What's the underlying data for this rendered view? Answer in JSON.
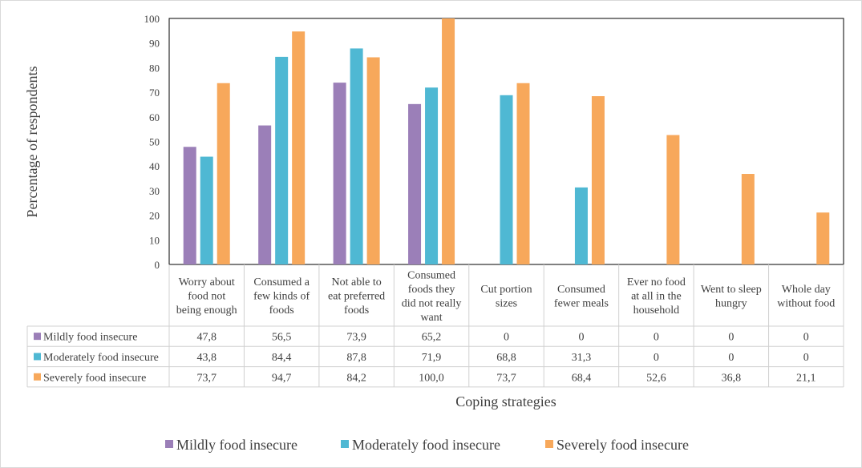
{
  "chart_data": {
    "type": "bar",
    "categories": [
      [
        "Worry about",
        "food not",
        "being enough"
      ],
      [
        "Consumed a",
        "few kinds of",
        "foods"
      ],
      [
        "Not able to",
        "eat preferred",
        "foods"
      ],
      [
        "Consumed",
        "foods they",
        "did not really",
        "want"
      ],
      [
        "Cut portion",
        "sizes"
      ],
      [
        "Consumed",
        "fewer meals"
      ],
      [
        "Ever no food",
        "at all in the",
        "household"
      ],
      [
        "Went to sleep",
        "hungry"
      ],
      [
        "Whole day",
        "without food"
      ]
    ],
    "series": [
      {
        "name": "Mildly food insecure",
        "color": "#9b7fb8",
        "values": [
          47.8,
          56.5,
          73.9,
          65.2,
          0,
          0,
          0,
          0,
          0
        ],
        "table_values": [
          "47,8",
          "56,5",
          "73,9",
          "65,2",
          "0",
          "0",
          "0",
          "0",
          "0"
        ]
      },
      {
        "name": "Moderately food insecure",
        "color": "#4fb8d3",
        "values": [
          43.8,
          84.4,
          87.8,
          71.9,
          68.8,
          31.3,
          0,
          0,
          0
        ],
        "table_values": [
          "43,8",
          "84,4",
          "87,8",
          "71,9",
          "68,8",
          "31,3",
          "0",
          "0",
          "0"
        ]
      },
      {
        "name": "Severely food insecure",
        "color": "#f7a85b",
        "values": [
          73.7,
          94.7,
          84.2,
          100.0,
          73.7,
          68.4,
          52.6,
          36.8,
          21.1
        ],
        "table_values": [
          "73,7",
          "94,7",
          "84,2",
          "100,0",
          "73,7",
          "68,4",
          "52,6",
          "36,8",
          "21,1"
        ]
      }
    ],
    "xlabel": "Coping strategies",
    "ylabel": "Percentage of respondents",
    "ylim": [
      0,
      100
    ],
    "yticks": [
      0,
      10,
      20,
      30,
      40,
      50,
      60,
      70,
      80,
      90,
      100
    ],
    "grid": false,
    "legend": "bottom",
    "data_table": true
  }
}
